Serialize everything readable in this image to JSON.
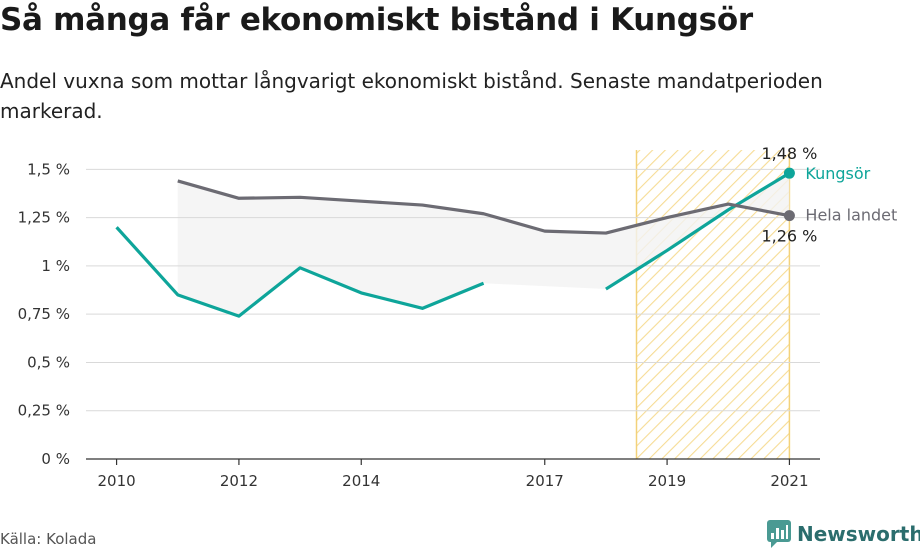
{
  "title": "Så många får ekonomiskt bistånd i Kungsör",
  "subtitle": "Andel vuxna som mottar långvarigt ekonomiskt bistånd. Senaste mandatperioden markerad.",
  "source": "Källa: Kolada",
  "brand": "Newsworthy",
  "colors": {
    "kungsor": "#0ea59a",
    "hela_landet": "#6c6b73",
    "highlight_stroke": "#f3d27a",
    "highlight_hatch": "#f6dc95",
    "band_fill": "#f2f2f2",
    "grid": "#d9d9d9"
  },
  "chart_data": {
    "type": "line",
    "x_ticks": [
      2010,
      2012,
      2014,
      2017,
      2019,
      2021
    ],
    "x_tick_labels": [
      "2010",
      "2012",
      "2014",
      "2017",
      "2019",
      "2021"
    ],
    "xlim": [
      2009.5,
      2021.5
    ],
    "y_ticks": [
      0,
      0.25,
      0.5,
      0.75,
      1,
      1.25,
      1.5
    ],
    "y_tick_labels": [
      "0 %",
      "0,25 %",
      "0,5 %",
      "0,75 %",
      "1 %",
      "1,25 %",
      "1,5 %"
    ],
    "ylim": [
      0,
      1.6
    ],
    "highlight_period": [
      2018.5,
      2021
    ],
    "series": [
      {
        "name": "Kungsör",
        "key": "kungsor",
        "points": [
          {
            "x": 2010,
            "y": 1.2
          },
          {
            "x": 2011,
            "y": 0.85
          },
          {
            "x": 2012,
            "y": 0.74
          },
          {
            "x": 2013,
            "y": 0.99
          },
          {
            "x": 2014,
            "y": 0.86
          },
          {
            "x": 2015,
            "y": 0.78
          },
          {
            "x": 2016,
            "y": 0.91
          },
          {
            "x": 2017,
            "y": null
          },
          {
            "x": 2018,
            "y": 0.88
          },
          {
            "x": 2019,
            "y": 1.08
          },
          {
            "x": 2020,
            "y": 1.29
          },
          {
            "x": 2021,
            "y": 1.48
          }
        ],
        "end_label": "1,48 %"
      },
      {
        "name": "Hela landet",
        "key": "hela_landet",
        "points": [
          {
            "x": 2011,
            "y": 1.44
          },
          {
            "x": 2012,
            "y": 1.35
          },
          {
            "x": 2013,
            "y": 1.355
          },
          {
            "x": 2014,
            "y": 1.335
          },
          {
            "x": 2015,
            "y": 1.315
          },
          {
            "x": 2016,
            "y": 1.27
          },
          {
            "x": 2017,
            "y": 1.18
          },
          {
            "x": 2018,
            "y": 1.17
          },
          {
            "x": 2019,
            "y": 1.25
          },
          {
            "x": 2020,
            "y": 1.32
          },
          {
            "x": 2021,
            "y": 1.26
          }
        ],
        "end_label": "1,26 %"
      }
    ]
  }
}
